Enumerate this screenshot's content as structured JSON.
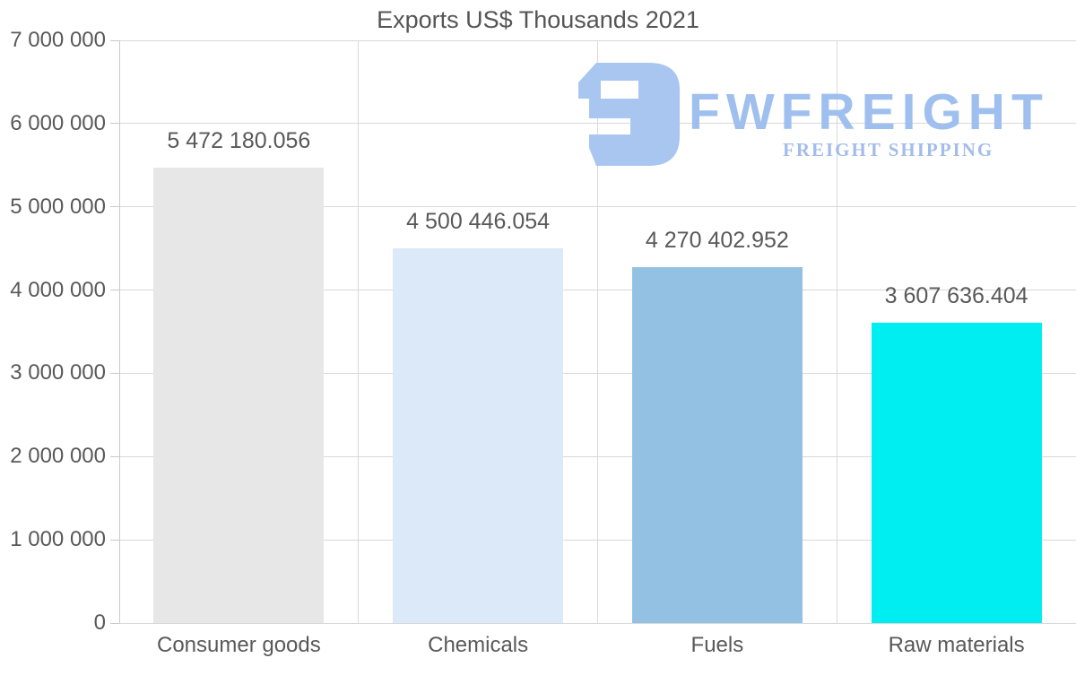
{
  "chart_data": {
    "type": "bar",
    "title": "Exports US$ Thousands 2021",
    "categories": [
      "Consumer goods",
      "Chemicals",
      "Fuels",
      "Raw materials"
    ],
    "values": [
      5472180.056,
      4500446.054,
      4270402.952,
      3607636.404
    ],
    "value_labels": [
      "5 472 180.056",
      "4 500 446.054",
      "4 270 402.952",
      "3 607 636.404"
    ],
    "bar_colors": [
      "#e7e7e7",
      "#dbe9f8",
      "#93c1e4",
      "#00eef1"
    ],
    "xlabel": "",
    "ylabel": "",
    "ylim": [
      0,
      7000000
    ],
    "ytick_interval": 1000000,
    "ytick_labels": [
      "0",
      "1 000 000",
      "2 000 000",
      "3 000 000",
      "4 000 000",
      "5 000 000",
      "6 000 000",
      "7 000 000"
    ],
    "grid": "horizontal gridlines plus vertical category separators",
    "legend": "none"
  },
  "logo": {
    "name": "FWFREIGHT",
    "tagline": "FREIGHT SHIPPING",
    "mark_color": "#a9c6f1",
    "text_color": "#9fc0ee",
    "tagline_color": "#a3bcea"
  },
  "colors": {
    "text": "#595959",
    "gridline": "#d9d9d9",
    "axis": "#c9c9c9",
    "background": "#ffffff"
  }
}
